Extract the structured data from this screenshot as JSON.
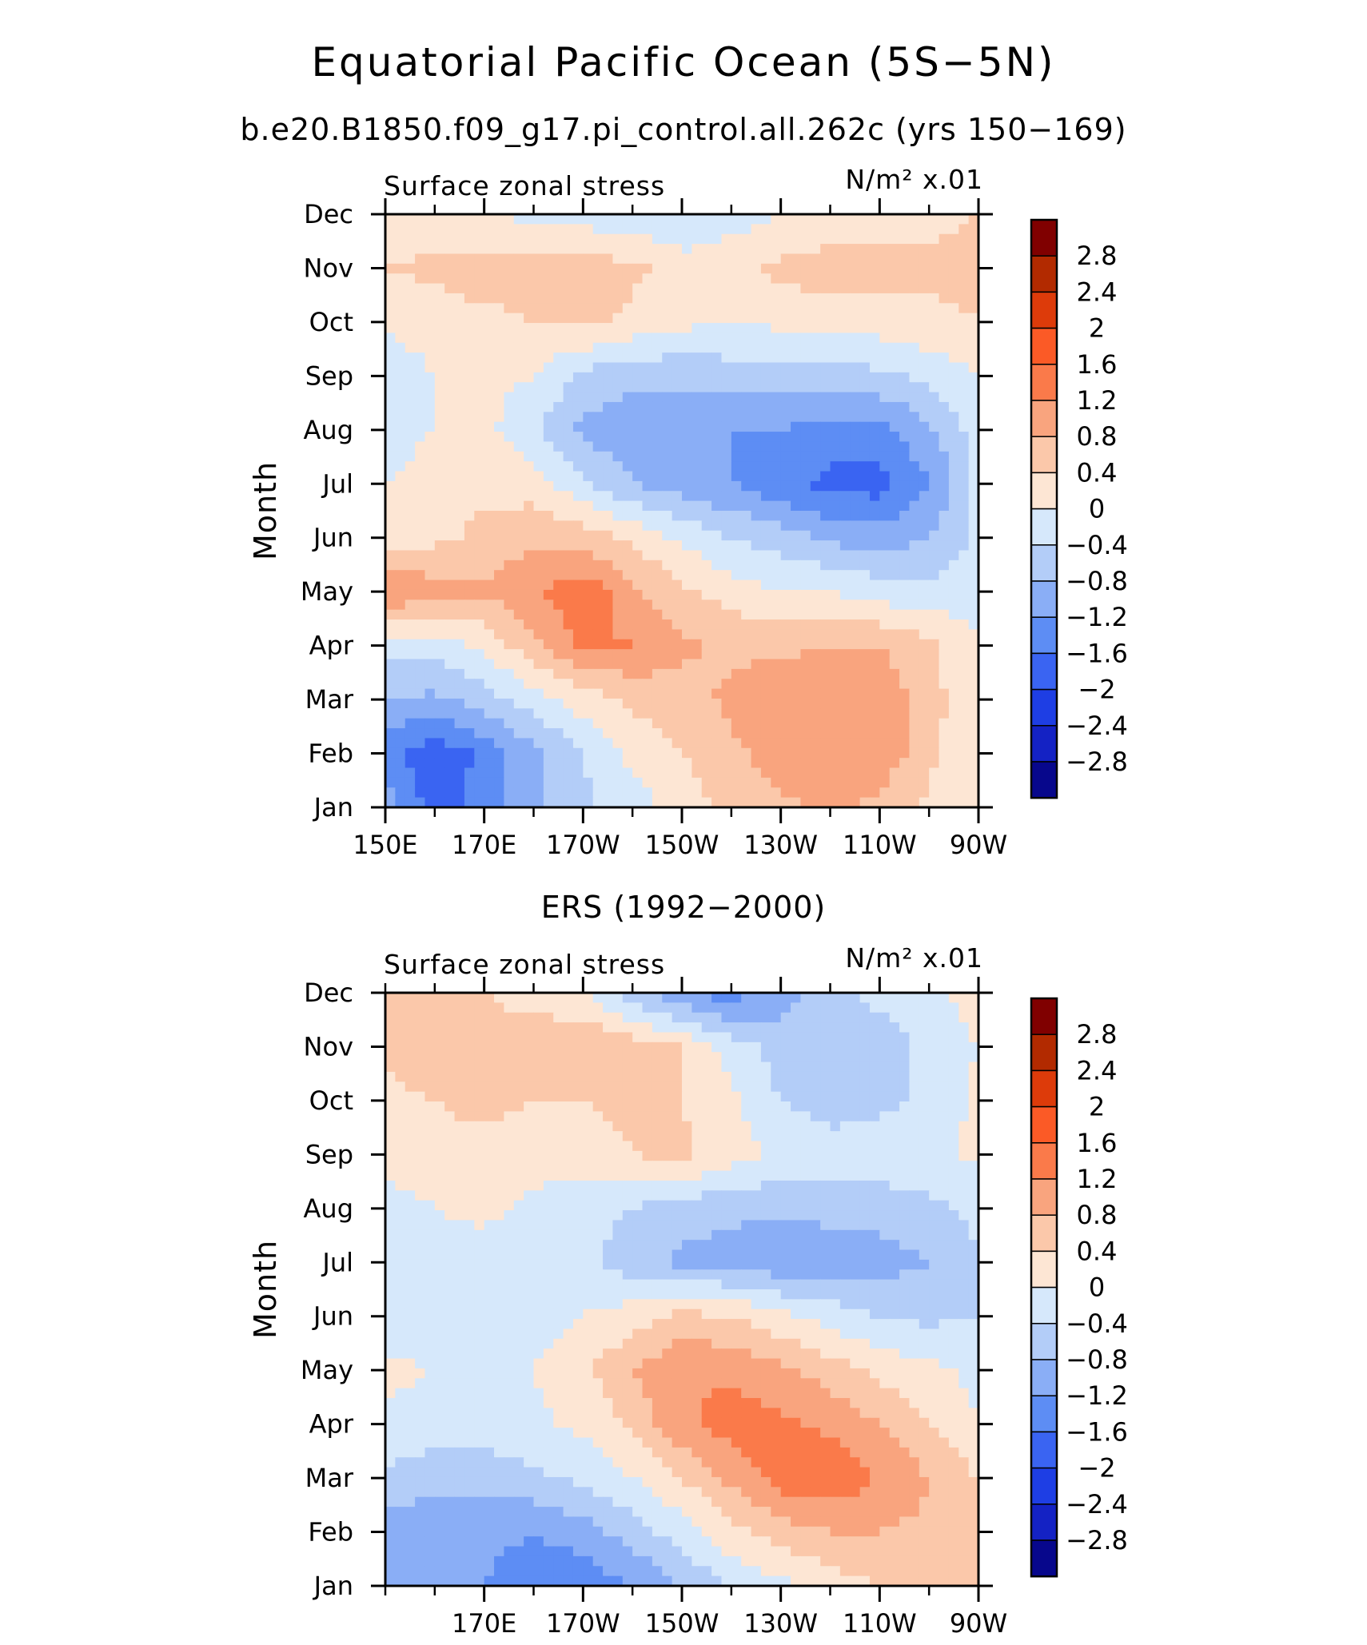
{
  "figure": {
    "title": "Equatorial Pacific Ocean (5S−5N)",
    "subtitle": "b.e20.B1850.f09_g17.pi_control.all.262c (yrs 150−169)"
  },
  "colorbar": {
    "levels": [
      "2.8",
      "2.4",
      "2",
      "1.6",
      "1.2",
      "0.8",
      "0.4",
      "0",
      "−0.4",
      "−0.8",
      "−1.2",
      "−1.6",
      "−2",
      "−2.4",
      "−2.8"
    ],
    "colors": [
      "#800000",
      "#b22a00",
      "#dd3b0a",
      "#fb5a26",
      "#fa7a4a",
      "#f9a47e",
      "#fbc8aa",
      "#fde6d4",
      "#d6e8fb",
      "#b3cdf8",
      "#8aaef6",
      "#5d8df4",
      "#3a64f2",
      "#1e3ee4",
      "#1422c4",
      "#07078c"
    ],
    "color_order": "top-to-bottom (>2.8 ... < -2.8)"
  },
  "chart_data": [
    {
      "type": "heatmap",
      "panel_title": "",
      "label_left": "Surface zonal stress",
      "label_right": "N/m² x.01",
      "ylabel": "Month",
      "xlabel": "",
      "x_ticks": [
        "150E",
        "170E",
        "170W",
        "150W",
        "130W",
        "110W",
        "90W"
      ],
      "y_ticks": [
        "Jan",
        "Feb",
        "Mar",
        "Apr",
        "May",
        "Jun",
        "Jul",
        "Aug",
        "Sep",
        "Oct",
        "Nov",
        "Dec"
      ],
      "x_range": [
        "150E",
        "90W"
      ],
      "y_range": [
        "Jan",
        "Dec"
      ],
      "grid": false,
      "longitudes_deg_east": [
        150,
        160,
        170,
        180,
        190,
        200,
        210,
        220,
        230,
        240,
        250,
        260,
        270
      ],
      "months": [
        "Jan",
        "Feb",
        "Mar",
        "Apr",
        "May",
        "Jun",
        "Jul",
        "Aug",
        "Sep",
        "Oct",
        "Nov",
        "Dec"
      ],
      "values_x0.01_N_per_m2": [
        [
          -1.0,
          -1.8,
          -1.4,
          -0.9,
          -0.5,
          -0.2,
          0.2,
          0.5,
          0.7,
          0.9,
          0.7,
          0.3,
          0.0
        ],
        [
          -1.4,
          -1.9,
          -1.5,
          -0.9,
          -0.4,
          0.1,
          0.4,
          0.7,
          1.0,
          1.2,
          1.1,
          0.5,
          0.0
        ],
        [
          -0.8,
          -0.9,
          -0.6,
          -0.2,
          0.2,
          0.5,
          0.6,
          0.9,
          1.1,
          1.2,
          1.1,
          0.6,
          0.0
        ],
        [
          -0.2,
          -0.2,
          0.1,
          0.7,
          1.3,
          1.2,
          0.9,
          0.7,
          0.7,
          0.8,
          0.8,
          0.5,
          0.0
        ],
        [
          1.2,
          1.0,
          0.9,
          1.1,
          1.5,
          0.9,
          0.5,
          0.2,
          0.0,
          0.0,
          -0.2,
          -0.3,
          -0.1
        ],
        [
          0.2,
          0.3,
          0.5,
          0.7,
          0.6,
          0.3,
          -0.1,
          -0.4,
          -0.6,
          -0.9,
          -1.0,
          -0.8,
          -0.3
        ],
        [
          0.0,
          0.2,
          0.3,
          0.2,
          -0.3,
          -0.8,
          -1.0,
          -1.2,
          -1.5,
          -1.7,
          -1.8,
          -1.2,
          -0.3
        ],
        [
          -0.2,
          0.0,
          0.1,
          -0.3,
          -0.9,
          -1.1,
          -1.1,
          -1.2,
          -1.2,
          -1.4,
          -1.3,
          -0.9,
          -0.2
        ],
        [
          -0.3,
          0.0,
          0.1,
          0.0,
          -0.5,
          -0.7,
          -0.7,
          -0.6,
          -0.6,
          -0.6,
          -0.5,
          -0.3,
          0.0
        ],
        [
          0.1,
          0.2,
          0.3,
          0.4,
          0.5,
          0.3,
          0.1,
          0.0,
          0.1,
          0.2,
          0.2,
          0.3,
          0.4
        ],
        [
          0.4,
          0.5,
          0.6,
          0.6,
          0.6,
          0.5,
          0.2,
          0.3,
          0.5,
          0.6,
          0.6,
          0.5,
          0.5
        ],
        [
          0.2,
          0.1,
          0.0,
          -0.1,
          -0.2,
          -0.3,
          -0.4,
          -0.2,
          0.0,
          0.1,
          0.2,
          0.3,
          0.4
        ]
      ]
    },
    {
      "type": "heatmap",
      "panel_title": "ERS (1992−2000)",
      "label_left": "Surface zonal stress",
      "label_right": "N/m² x.01",
      "ylabel": "Month",
      "xlabel": "",
      "x_ticks": [
        "170E",
        "170W",
        "150W",
        "130W",
        "110W",
        "90W"
      ],
      "y_ticks": [
        "Jan",
        "Feb",
        "Mar",
        "Apr",
        "May",
        "Jun",
        "Jul",
        "Aug",
        "Sep",
        "Oct",
        "Nov",
        "Dec"
      ],
      "x_range": [
        "150E",
        "90W"
      ],
      "y_range": [
        "Jan",
        "Dec"
      ],
      "grid": false,
      "longitudes_deg_east": [
        150,
        160,
        170,
        180,
        190,
        200,
        210,
        220,
        230,
        240,
        250,
        260,
        270
      ],
      "months": [
        "Jan",
        "Feb",
        "Mar",
        "Apr",
        "May",
        "Jun",
        "Jul",
        "Aug",
        "Sep",
        "Oct",
        "Nov",
        "Dec"
      ],
      "values_x0.01_N_per_m2": [
        [
          -0.9,
          -1.1,
          -1.2,
          -1.4,
          -1.5,
          -1.2,
          -0.8,
          -0.4,
          -0.1,
          0.2,
          0.4,
          0.5,
          0.4
        ],
        [
          -1.0,
          -1.2,
          -1.1,
          -1.2,
          -1.0,
          -0.6,
          -0.2,
          0.3,
          0.6,
          0.8,
          0.8,
          0.7,
          0.5
        ],
        [
          -0.5,
          -0.6,
          -0.6,
          -0.5,
          -0.3,
          0.0,
          0.4,
          0.9,
          1.4,
          1.5,
          1.2,
          0.8,
          0.4
        ],
        [
          -0.1,
          -0.2,
          -0.2,
          -0.1,
          0.1,
          0.5,
          1.1,
          1.4,
          1.3,
          1.1,
          0.8,
          0.4,
          0.0
        ],
        [
          0.1,
          0.0,
          -0.1,
          0.0,
          0.3,
          0.8,
          1.2,
          1.1,
          0.9,
          0.6,
          0.3,
          0.1,
          -0.1
        ],
        [
          -0.3,
          -0.4,
          -0.3,
          -0.2,
          0.0,
          0.2,
          0.5,
          0.4,
          0.1,
          -0.2,
          -0.4,
          -0.5,
          -0.4
        ],
        [
          -0.1,
          -0.2,
          -0.2,
          -0.2,
          -0.3,
          -0.6,
          -0.9,
          -1.0,
          -1.1,
          -1.0,
          -1.0,
          -0.8,
          -0.4
        ],
        [
          -0.2,
          0.0,
          0.1,
          -0.1,
          -0.3,
          -0.4,
          -0.6,
          -0.7,
          -0.7,
          -0.7,
          -0.6,
          -0.5,
          -0.3
        ],
        [
          0.2,
          0.3,
          0.3,
          0.2,
          0.2,
          0.4,
          0.5,
          0.2,
          -0.1,
          -0.2,
          -0.2,
          -0.1,
          0.1
        ],
        [
          0.3,
          0.4,
          0.5,
          0.4,
          0.4,
          0.5,
          0.4,
          0.1,
          -0.4,
          -0.6,
          -0.5,
          -0.3,
          0.1
        ],
        [
          0.5,
          0.6,
          0.6,
          0.7,
          0.8,
          0.6,
          0.4,
          -0.2,
          -0.6,
          -0.7,
          -0.6,
          -0.3,
          0.0
        ],
        [
          0.6,
          0.5,
          0.4,
          0.2,
          0.0,
          -0.6,
          -1.2,
          -1.4,
          -1.0,
          -0.5,
          -0.3,
          -0.1,
          0.2
        ]
      ]
    }
  ]
}
